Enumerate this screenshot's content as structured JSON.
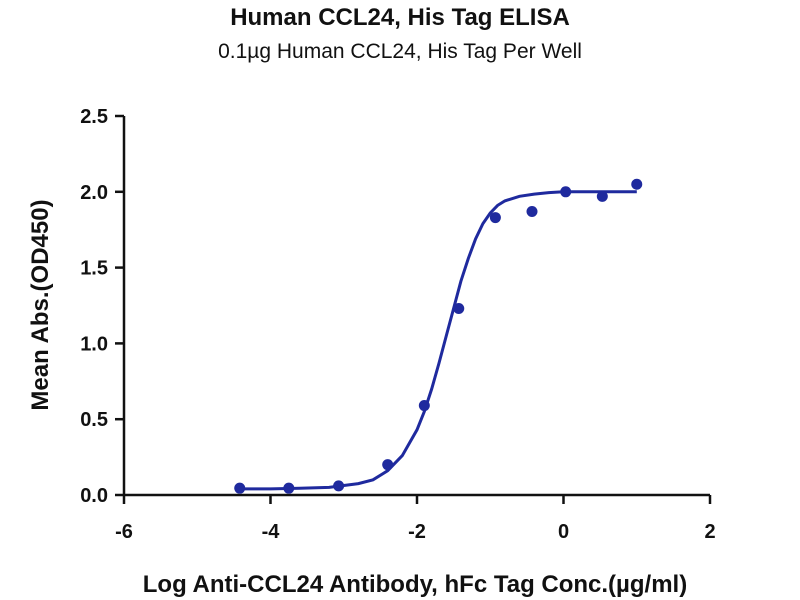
{
  "chart_data": {
    "type": "scatter",
    "title": "Human CCL24, His Tag ELISA",
    "subtitle": "0.1µg Human CCL24, His Tag Per Well",
    "xlabel": "Log Anti-CCL24 Antibody, hFc Tag Conc.(µg/ml)",
    "ylabel": "Mean Abs.(OD450)",
    "xlim": [
      -6,
      2
    ],
    "ylim": [
      0,
      2.5
    ],
    "x_ticks": [
      -6,
      -4,
      -2,
      0,
      2
    ],
    "y_ticks": [
      0.0,
      0.5,
      1.0,
      1.5,
      2.0,
      2.5
    ],
    "x_tick_labels": [
      "-6",
      "-4",
      "-2",
      "0",
      "2"
    ],
    "y_tick_labels": [
      "0.0",
      "0.5",
      "1.0",
      "1.5",
      "2.0",
      "2.5"
    ],
    "grid": false,
    "color": "#1f2a9e",
    "points": {
      "x": [
        -4.42,
        -3.75,
        -3.07,
        -2.4,
        -1.9,
        -1.43,
        -0.93,
        -0.43,
        0.03,
        0.53,
        1.0
      ],
      "y": [
        0.045,
        0.045,
        0.06,
        0.2,
        0.59,
        1.23,
        1.83,
        1.87,
        2.0,
        1.97,
        2.05
      ]
    },
    "fit_curve": {
      "x": [
        -4.4,
        -4.0,
        -3.6,
        -3.2,
        -2.8,
        -2.6,
        -2.4,
        -2.2,
        -2.0,
        -1.9,
        -1.8,
        -1.7,
        -1.6,
        -1.5,
        -1.4,
        -1.3,
        -1.2,
        -1.1,
        -1.0,
        -0.9,
        -0.8,
        -0.6,
        -0.4,
        -0.2,
        0.0,
        0.3,
        0.6,
        1.0
      ],
      "y": [
        0.04,
        0.04,
        0.045,
        0.05,
        0.075,
        0.1,
        0.16,
        0.26,
        0.43,
        0.55,
        0.7,
        0.87,
        1.05,
        1.23,
        1.41,
        1.56,
        1.69,
        1.79,
        1.86,
        1.91,
        1.94,
        1.97,
        1.985,
        1.995,
        2.0,
        2.0,
        2.0,
        2.0
      ]
    }
  }
}
